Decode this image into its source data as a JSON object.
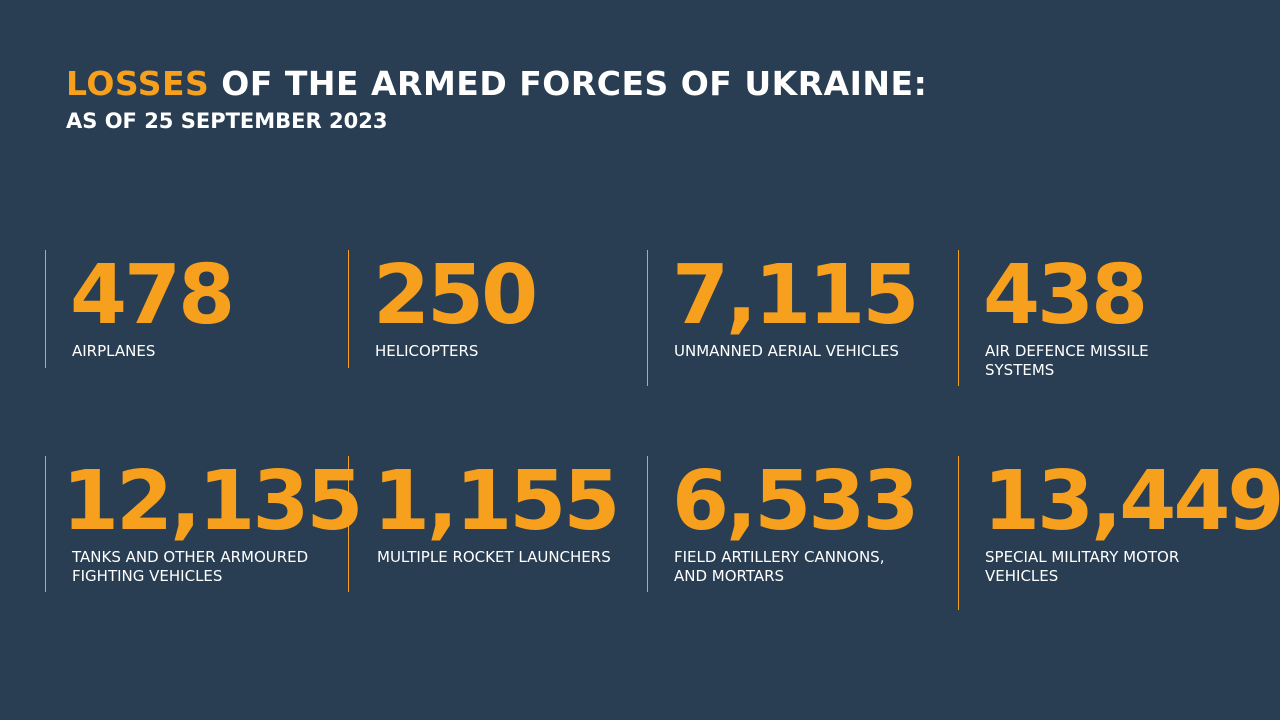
{
  "colors": {
    "background": "#293e53",
    "accent": "#f6a01e",
    "text": "#ffffff"
  },
  "header": {
    "title_accent": "LOSSES",
    "title_rest": " OF THE ARMED FORCES OF UKRAINE:",
    "subtitle": "AS OF 25 SEPTEMBER 2023"
  },
  "stats": [
    {
      "value": "478",
      "label_lines": [
        "AIRPLANES"
      ]
    },
    {
      "value": "250",
      "label_lines": [
        "HELICOPTERS"
      ]
    },
    {
      "value": "7,115",
      "label_lines": [
        "UNMANNED AERIAL VEHICLES"
      ]
    },
    {
      "value": "438",
      "label_lines": [
        "AIR DEFENCE MISSILE",
        "SYSTEMS"
      ]
    },
    {
      "value": "12,135",
      "label_lines": [
        "TANKS AND OTHER ARMOURED",
        "FIGHTING VEHICLES"
      ]
    },
    {
      "value": "1,155",
      "label_lines": [
        "MULTIPLE ROCKET LAUNCHERS"
      ]
    },
    {
      "value": "6,533",
      "label_lines": [
        "FIELD ARTILLERY CANNONS,",
        "AND MORTARS"
      ]
    },
    {
      "value": "13,449",
      "label_lines": [
        "SPECIAL MILITARY MOTOR",
        "VEHICLES"
      ]
    }
  ]
}
